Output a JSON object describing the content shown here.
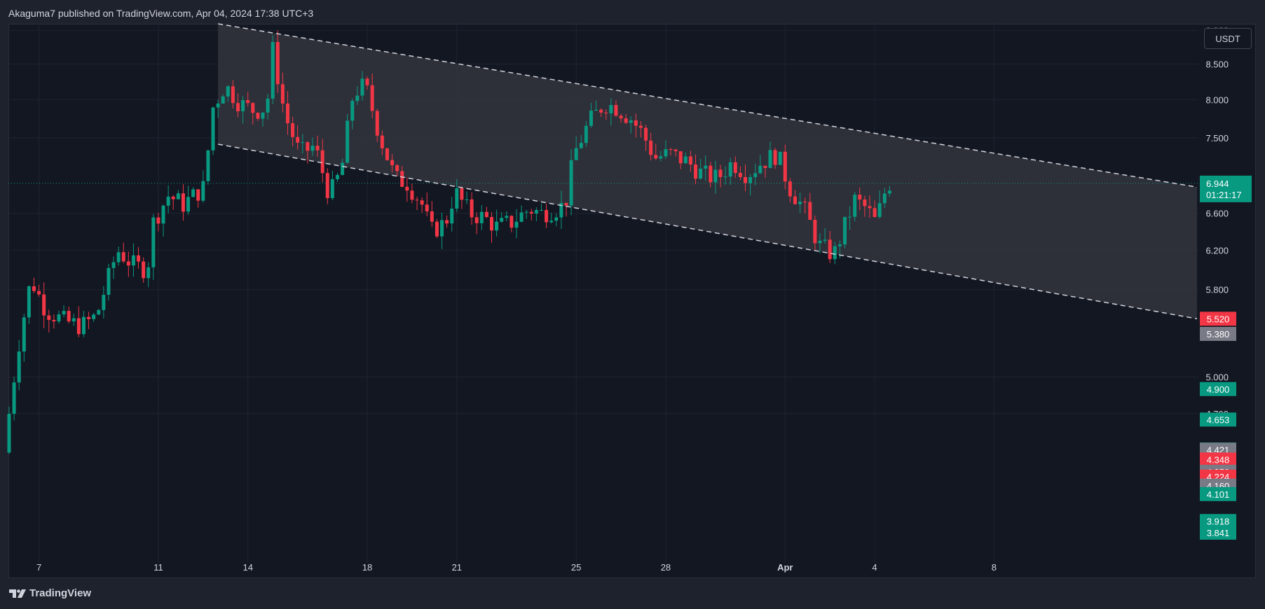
{
  "header": {
    "published": "Akaguma7 published on TradingView.com, Apr 04, 2024 17:38 UTC+3"
  },
  "footer": {
    "brand": "TradingView"
  },
  "currency": "USDT",
  "colors": {
    "up": "#089981",
    "down": "#f23645",
    "gray": "#787b86",
    "bg": "#131722",
    "grid": "#1f2431",
    "text": "#d1d4dc"
  },
  "chart_data": {
    "type": "candlestick",
    "title": "",
    "xlabel": "",
    "ylabel": "",
    "y_scale": "log",
    "ylim": [
      3.65,
      9.1
    ],
    "y_ticks": [
      "5.000",
      "5.800",
      "6.200",
      "6.600",
      "7.500",
      "8.000",
      "8.500",
      "9.000",
      "4.700"
    ],
    "x_ticks": [
      {
        "t": 7,
        "label": "7"
      },
      {
        "t": 11,
        "label": "11"
      },
      {
        "t": 14,
        "label": "14"
      },
      {
        "t": 18,
        "label": "18"
      },
      {
        "t": 21,
        "label": "21"
      },
      {
        "t": 25,
        "label": "25"
      },
      {
        "t": 28,
        "label": "28"
      },
      {
        "t": 32,
        "label": "Apr"
      },
      {
        "t": 35,
        "label": "4"
      },
      {
        "t": 39,
        "label": "8"
      }
    ],
    "x_range": [
      6.0,
      45.8
    ],
    "channel": {
      "upper": [
        {
          "t": 13.0,
          "v": 9.1
        },
        {
          "t": 45.8,
          "v": 6.9
        }
      ],
      "lower": [
        {
          "t": 13.0,
          "v": 7.42
        },
        {
          "t": 45.8,
          "v": 5.52
        }
      ]
    },
    "current": {
      "price": "6.944",
      "countdown": "01:21:17"
    },
    "price_badges": [
      {
        "label": "5.520",
        "v": 5.52,
        "color": "#f23645"
      },
      {
        "label": "5.380",
        "v": 5.38,
        "color": "#787b86"
      },
      {
        "label": "4.900",
        "v": 4.9,
        "color": "#089981"
      },
      {
        "label": "4.653",
        "v": 4.653,
        "color": "#089981"
      },
      {
        "label": "4.423",
        "v": 4.423,
        "color": "#089981"
      },
      {
        "label": "4.421",
        "v": 4.421,
        "color": "#787b86"
      },
      {
        "label": "4.348",
        "v": 4.348,
        "color": "#f23645"
      },
      {
        "label": "4.263",
        "v": 4.263,
        "color": "#f23645"
      },
      {
        "label": "4.259",
        "v": 4.259,
        "color": "#787b86"
      },
      {
        "label": "4.224",
        "v": 4.224,
        "color": "#f23645"
      },
      {
        "label": "4.160",
        "v": 4.16,
        "color": "#787b86"
      },
      {
        "label": "4.101",
        "v": 4.101,
        "color": "#089981"
      },
      {
        "label": "3.918",
        "v": 3.918,
        "color": "#089981"
      },
      {
        "label": "3.841",
        "v": 3.841,
        "color": "#089981"
      }
    ],
    "anchors": [
      [
        6.0,
        4.4
      ],
      [
        6.5,
        5.3
      ],
      [
        6.9,
        5.9
      ],
      [
        7.4,
        5.6
      ],
      [
        8.0,
        5.5
      ],
      [
        8.6,
        5.45
      ],
      [
        9.1,
        5.55
      ],
      [
        9.8,
        6.2
      ],
      [
        10.3,
        6.05
      ],
      [
        10.8,
        6.0
      ],
      [
        11.0,
        6.5
      ],
      [
        11.5,
        6.8
      ],
      [
        12.0,
        6.7
      ],
      [
        12.7,
        6.9
      ],
      [
        13.0,
        7.9
      ],
      [
        13.4,
        8.2
      ],
      [
        13.9,
        7.95
      ],
      [
        14.4,
        7.85
      ],
      [
        14.8,
        7.9
      ],
      [
        15.0,
        8.7
      ],
      [
        15.4,
        7.8
      ],
      [
        15.9,
        7.3
      ],
      [
        16.4,
        7.4
      ],
      [
        16.9,
        6.8
      ],
      [
        17.3,
        7.1
      ],
      [
        17.7,
        8.1
      ],
      [
        18.1,
        8.2
      ],
      [
        18.6,
        7.5
      ],
      [
        19.1,
        7.0
      ],
      [
        19.5,
        6.95
      ],
      [
        20.0,
        6.7
      ],
      [
        20.3,
        6.4
      ],
      [
        20.8,
        6.5
      ],
      [
        21.1,
        6.85
      ],
      [
        21.6,
        6.6
      ],
      [
        22.1,
        6.55
      ],
      [
        22.5,
        6.45
      ],
      [
        23.0,
        6.5
      ],
      [
        23.6,
        6.65
      ],
      [
        24.0,
        6.6
      ],
      [
        24.5,
        6.65
      ],
      [
        24.8,
        6.7
      ],
      [
        25.1,
        7.3
      ],
      [
        25.6,
        7.7
      ],
      [
        26.1,
        7.95
      ],
      [
        26.5,
        7.9
      ],
      [
        27.0,
        7.75
      ],
      [
        27.4,
        7.55
      ],
      [
        27.8,
        7.25
      ],
      [
        28.3,
        7.3
      ],
      [
        28.9,
        7.2
      ],
      [
        29.4,
        7.05
      ],
      [
        29.9,
        7.0
      ],
      [
        30.4,
        7.2
      ],
      [
        30.9,
        7.05
      ],
      [
        31.4,
        7.2
      ],
      [
        31.9,
        7.3
      ],
      [
        32.3,
        6.9
      ],
      [
        32.8,
        6.65
      ],
      [
        33.3,
        6.25
      ],
      [
        33.8,
        6.15
      ],
      [
        34.1,
        6.4
      ],
      [
        34.5,
        6.75
      ],
      [
        34.9,
        6.65
      ],
      [
        35.2,
        6.5
      ],
      [
        35.6,
        6.944
      ]
    ]
  }
}
